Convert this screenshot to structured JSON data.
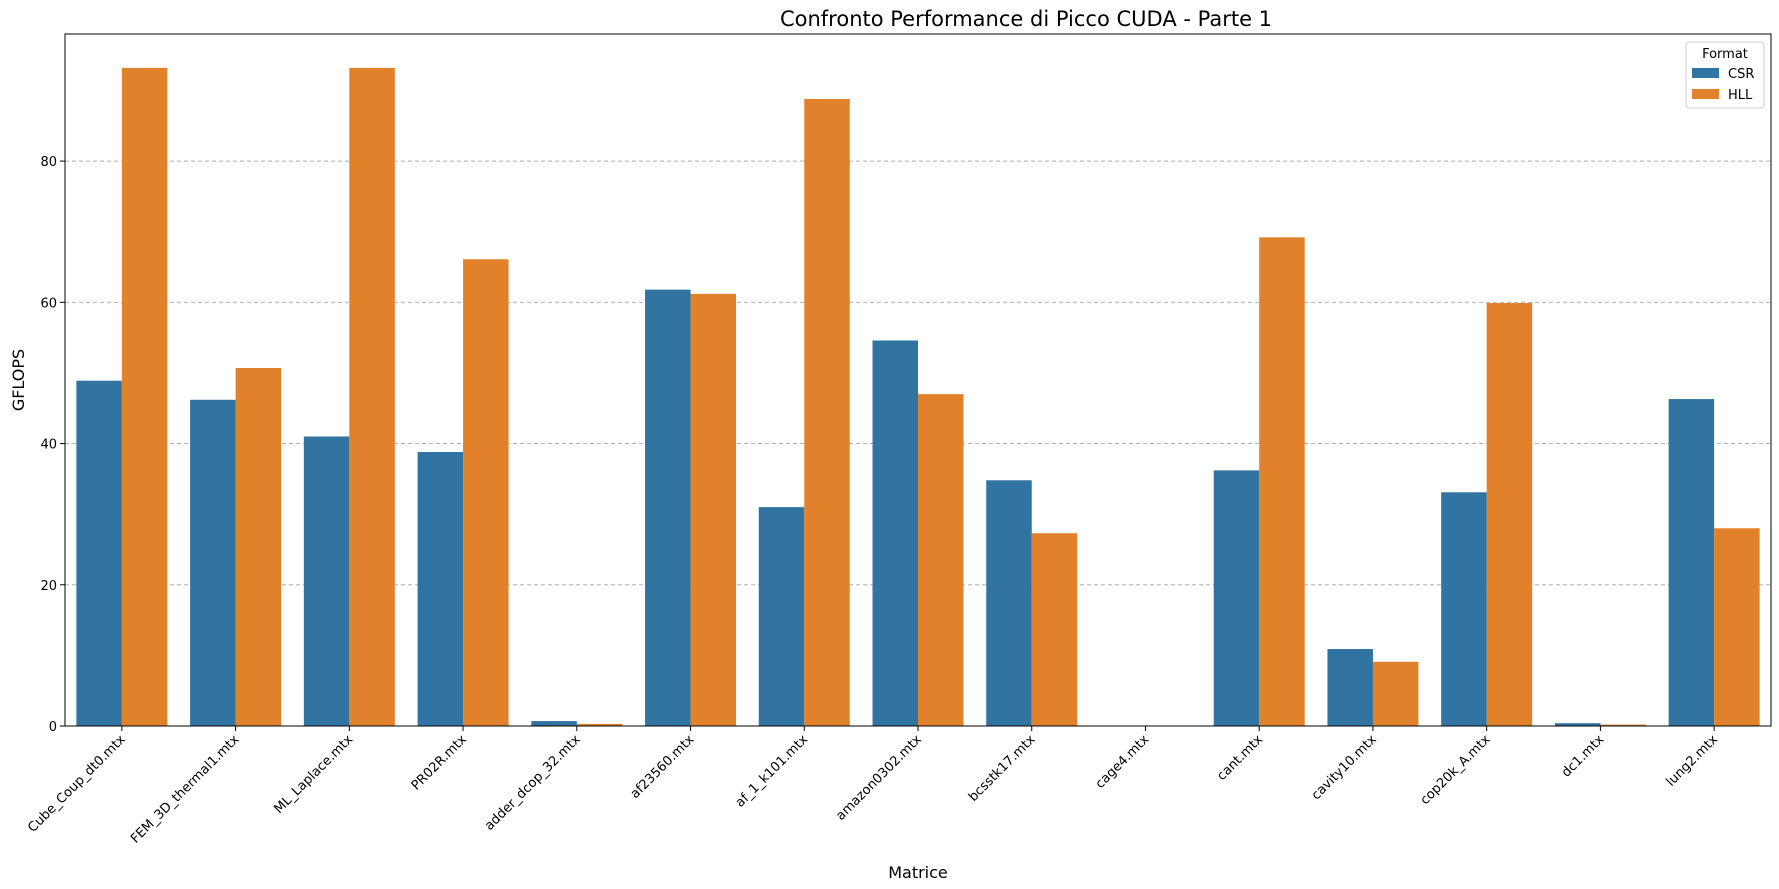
{
  "chart_data": {
    "type": "bar",
    "title": "Confronto Performance di Picco CUDA - Parte 1",
    "xlabel": "Matrice",
    "ylabel": "GFLOPS",
    "ylim": [
      0,
      98
    ],
    "yticks": [
      "0",
      "20",
      "40",
      "60",
      "80"
    ],
    "grid": "horizontal dashed",
    "legend": {
      "title": "Format",
      "placement": "top-right"
    },
    "categories": [
      "Cube_Coup_dt0.mtx",
      "FEM_3D_thermal1.mtx",
      "ML_Laplace.mtx",
      "PR02R.mtx",
      "adder_dcop_32.mtx",
      "af23560.mtx",
      "af_1_k101.mtx",
      "amazon0302.mtx",
      "bcsstk17.mtx",
      "cage4.mtx",
      "cant.mtx",
      "cavity10.mtx",
      "cop20k_A.mtx",
      "dc1.mtx",
      "lung2.mtx"
    ],
    "series": [
      {
        "name": "CSR",
        "color": "#3274a1",
        "values": [
          48.9,
          46.2,
          41.0,
          38.8,
          0.7,
          61.8,
          31.0,
          54.6,
          34.8,
          0.0,
          36.2,
          10.9,
          33.1,
          0.4,
          46.3
        ]
      },
      {
        "name": "HLL",
        "color": "#e1812c",
        "values": [
          93.2,
          50.7,
          93.2,
          66.1,
          0.3,
          61.2,
          88.8,
          47.0,
          27.3,
          0.0,
          69.2,
          9.1,
          59.9,
          0.2,
          28.0
        ]
      }
    ]
  }
}
